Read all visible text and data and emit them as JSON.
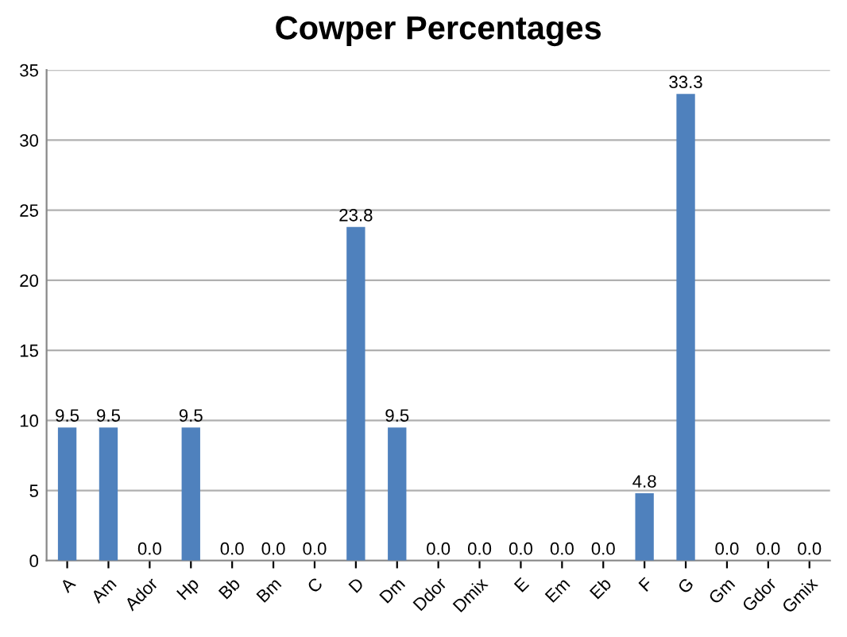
{
  "chart_data": {
    "type": "bar",
    "title": "Cowper Percentages",
    "categories": [
      "A",
      "Am",
      "Ador",
      "Hp",
      "Bb",
      "Bm",
      "C",
      "D",
      "Dm",
      "Ddor",
      "Dmix",
      "E",
      "Em",
      "Eb",
      "F",
      "G",
      "Gm",
      "Gdor",
      "Gmix"
    ],
    "values": [
      9.5,
      9.5,
      0,
      9.5,
      0,
      0,
      0,
      23.8,
      9.5,
      0,
      0,
      0,
      0,
      0,
      4.8,
      33.3,
      0,
      0,
      0
    ],
    "value_labels": [
      "9.5",
      "9.5",
      "0.0",
      "9.5",
      "0.0",
      "0.0",
      "0.0",
      "23.8",
      "9.5",
      "0.0",
      "0.0",
      "0.0",
      "0.0",
      "0.0",
      "4.8",
      "33.3",
      "0.0",
      "0.0",
      "0.0"
    ],
    "color": "#4f81bd",
    "ylim": [
      0,
      35
    ],
    "yticks": [
      0,
      5,
      10,
      15,
      20,
      25,
      30,
      35
    ],
    "grid": "y"
  }
}
